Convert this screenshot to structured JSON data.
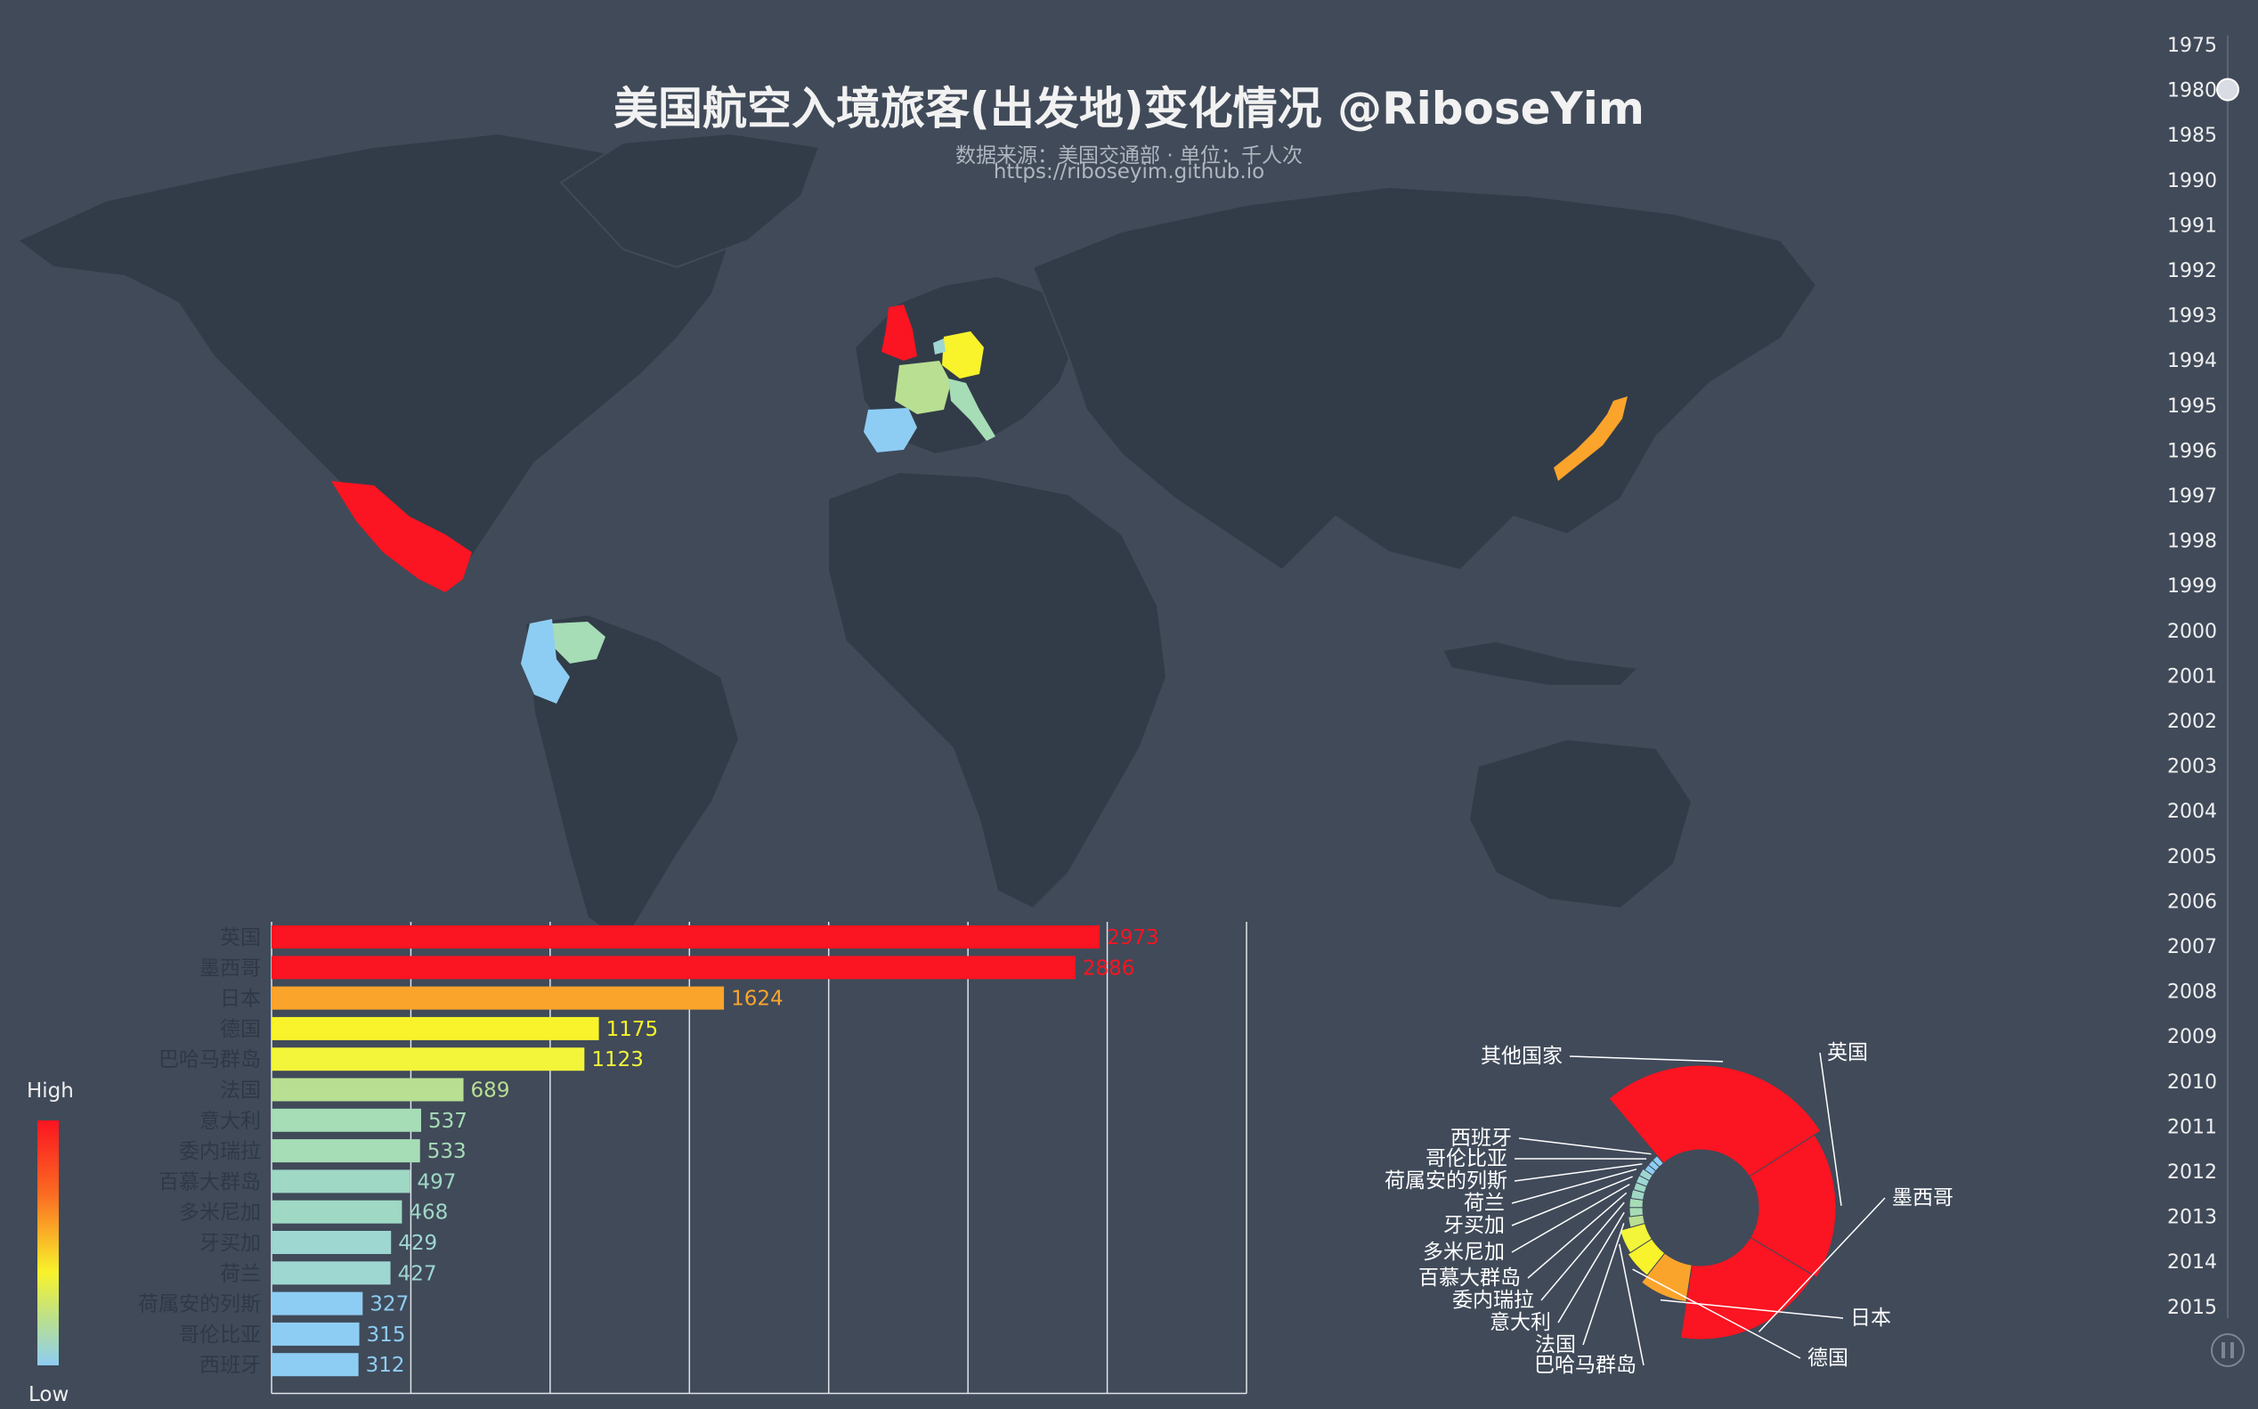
{
  "title": "美国航空入境旅客(出发地)变化情况 @RiboseYim",
  "subtitle_source": "数据来源：美国交通部 · 单位：千人次",
  "subtitle_url": "https://riboseyim.github.io",
  "visual_map": {
    "high": "High",
    "low": "Low"
  },
  "timeline": {
    "years": [
      "1975",
      "1980",
      "1985",
      "1990",
      "1991",
      "1992",
      "1993",
      "1994",
      "1995",
      "1996",
      "1997",
      "1998",
      "1999",
      "2000",
      "2001",
      "2002",
      "2003",
      "2004",
      "2005",
      "2006",
      "2007",
      "2008",
      "2009",
      "2010",
      "2011",
      "2012",
      "2013",
      "2014",
      "2015"
    ],
    "current": "1980",
    "play_state": "paused"
  },
  "colors": {
    "英国": "#fb1421",
    "墨西哥": "#fb1421",
    "日本": "#fba42c",
    "德国": "#f8f32b",
    "巴哈马群岛": "#f2f53a",
    "法国": "#b8df92",
    "意大利": "#a6dcb6",
    "委内瑞拉": "#a6dcb6",
    "百慕大群岛": "#9fd8c4",
    "多米尼加": "#9fd8c4",
    "牙买加": "#9ed6d2",
    "荷兰": "#9ed6d2",
    "荷属安的列斯": "#8ecdf3",
    "哥伦比亚": "#8ecdf3",
    "西班牙": "#8ecdf3",
    "其他国家": "#fb1421"
  },
  "map": {
    "highlighted": [
      "英国",
      "墨西哥",
      "日本",
      "德国",
      "法国",
      "意大利",
      "西班牙",
      "委内瑞拉",
      "哥伦比亚",
      "荷兰"
    ]
  },
  "chart_data": [
    {
      "type": "bar",
      "orientation": "horizontal",
      "categories": [
        "英国",
        "墨西哥",
        "日本",
        "德国",
        "巴哈马群岛",
        "法国",
        "意大利",
        "委内瑞拉",
        "百慕大群岛",
        "多米尼加",
        "牙买加",
        "荷兰",
        "荷属安的列斯",
        "哥伦比亚",
        "西班牙"
      ],
      "values": [
        2973,
        2886,
        1624,
        1175,
        1123,
        689,
        537,
        533,
        497,
        468,
        429,
        427,
        327,
        315,
        312
      ],
      "xlim": [
        0,
        3500
      ],
      "grid": true
    },
    {
      "type": "pie",
      "style": "rose",
      "labels": [
        "其他国家",
        "英国",
        "墨西哥",
        "日本",
        "德国",
        "巴哈马群岛",
        "法国",
        "意大利",
        "委内瑞拉",
        "百慕大群岛",
        "多米尼加",
        "牙买加",
        "荷兰",
        "荷属安的列斯",
        "哥伦比亚",
        "西班牙"
      ],
      "values": [
        null,
        2973,
        2886,
        1624,
        1175,
        1123,
        689,
        537,
        533,
        497,
        468,
        429,
        427,
        327,
        315,
        312
      ]
    }
  ]
}
